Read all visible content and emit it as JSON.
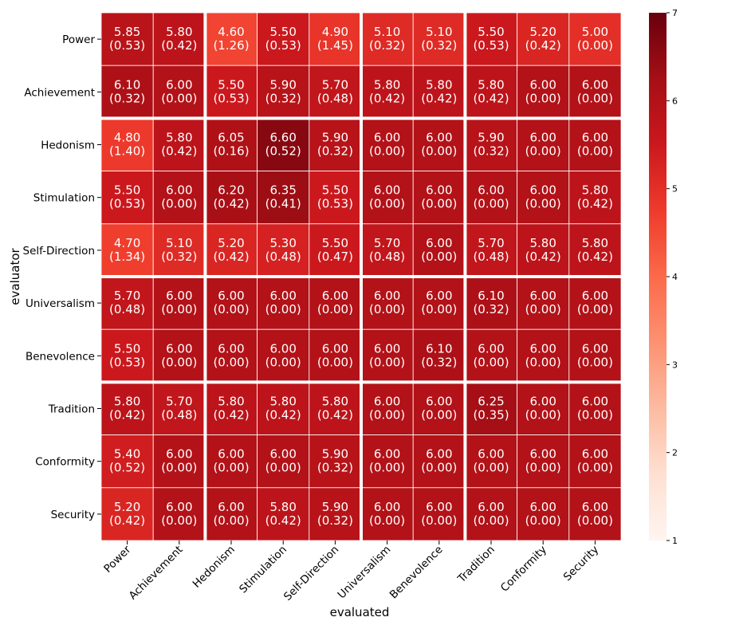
{
  "chart_data": {
    "type": "heatmap",
    "title": "",
    "xlabel": "evaluated",
    "ylabel": "evaluator",
    "x_categories": [
      "Power",
      "Achievement",
      "Hedonism",
      "Stimulation",
      "Self-Direction",
      "Universalism",
      "Benevolence",
      "Tradition",
      "Conformity",
      "Security"
    ],
    "y_categories": [
      "Power",
      "Achievement",
      "Hedonism",
      "Stimulation",
      "Self-Direction",
      "Universalism",
      "Benevolence",
      "Tradition",
      "Conformity",
      "Security"
    ],
    "means": [
      [
        5.85,
        5.8,
        4.6,
        5.5,
        4.9,
        5.1,
        5.1,
        5.5,
        5.2,
        5.0
      ],
      [
        6.1,
        6.0,
        5.5,
        5.9,
        5.7,
        5.8,
        5.8,
        5.8,
        6.0,
        6.0
      ],
      [
        4.8,
        5.8,
        6.05,
        6.6,
        5.9,
        6.0,
        6.0,
        5.9,
        6.0,
        6.0
      ],
      [
        5.5,
        6.0,
        6.2,
        6.35,
        5.5,
        6.0,
        6.0,
        6.0,
        6.0,
        5.8
      ],
      [
        4.7,
        5.1,
        5.2,
        5.3,
        5.5,
        5.7,
        6.0,
        5.7,
        5.8,
        5.8
      ],
      [
        5.7,
        6.0,
        6.0,
        6.0,
        6.0,
        6.0,
        6.0,
        6.1,
        6.0,
        6.0
      ],
      [
        5.5,
        6.0,
        6.0,
        6.0,
        6.0,
        6.0,
        6.1,
        6.0,
        6.0,
        6.0
      ],
      [
        5.8,
        5.7,
        5.8,
        5.8,
        5.8,
        6.0,
        6.0,
        6.25,
        6.0,
        6.0
      ],
      [
        5.4,
        6.0,
        6.0,
        6.0,
        5.9,
        6.0,
        6.0,
        6.0,
        6.0,
        6.0
      ],
      [
        5.2,
        6.0,
        6.0,
        5.8,
        5.9,
        6.0,
        6.0,
        6.0,
        6.0,
        6.0
      ]
    ],
    "stds": [
      [
        0.53,
        0.42,
        1.26,
        0.53,
        1.45,
        0.32,
        0.32,
        0.53,
        0.42,
        0.0
      ],
      [
        0.32,
        0.0,
        0.53,
        0.32,
        0.48,
        0.42,
        0.42,
        0.42,
        0.0,
        0.0
      ],
      [
        1.4,
        0.42,
        0.16,
        0.52,
        0.32,
        0.0,
        0.0,
        0.32,
        0.0,
        0.0
      ],
      [
        0.53,
        0.0,
        0.42,
        0.41,
        0.53,
        0.0,
        0.0,
        0.0,
        0.0,
        0.42
      ],
      [
        1.34,
        0.32,
        0.42,
        0.48,
        0.47,
        0.48,
        0.0,
        0.48,
        0.42,
        0.42
      ],
      [
        0.48,
        0.0,
        0.0,
        0.0,
        0.0,
        0.0,
        0.0,
        0.32,
        0.0,
        0.0
      ],
      [
        0.53,
        0.0,
        0.0,
        0.0,
        0.0,
        0.0,
        0.32,
        0.0,
        0.0,
        0.0
      ],
      [
        0.42,
        0.48,
        0.42,
        0.42,
        0.42,
        0.0,
        0.0,
        0.35,
        0.0,
        0.0
      ],
      [
        0.52,
        0.0,
        0.0,
        0.0,
        0.32,
        0.0,
        0.0,
        0.0,
        0.0,
        0.0
      ],
      [
        0.42,
        0.0,
        0.0,
        0.42,
        0.32,
        0.0,
        0.0,
        0.0,
        0.0,
        0.0
      ]
    ],
    "colorbar": {
      "min": 1,
      "max": 7,
      "ticks": [
        1,
        2,
        3,
        4,
        5,
        6,
        7
      ],
      "colormap": "Reds"
    },
    "group_boundaries_after_index": [
      1,
      4,
      6
    ],
    "legend": "none"
  }
}
